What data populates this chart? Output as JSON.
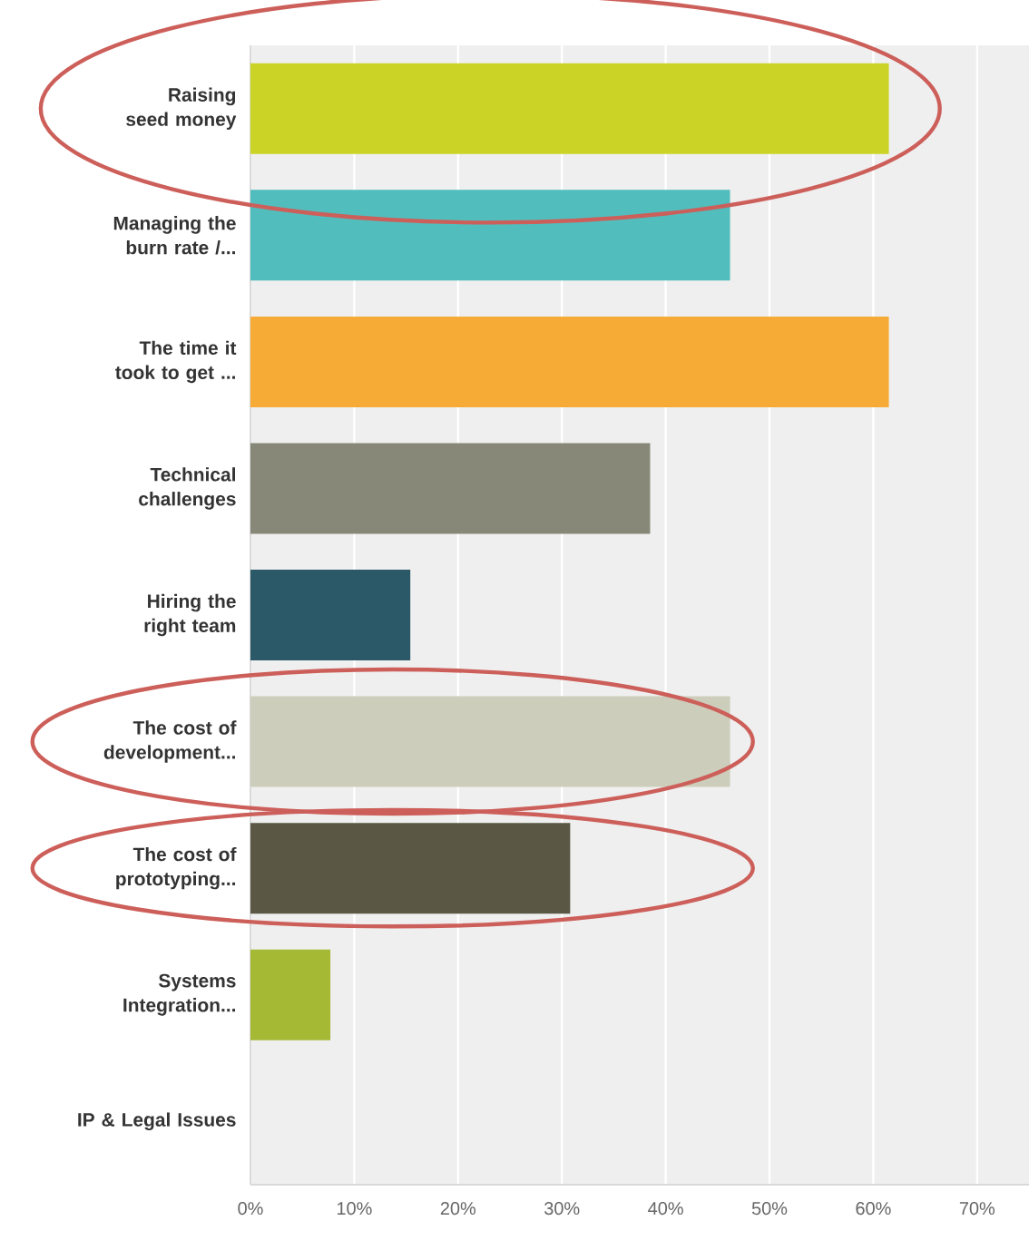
{
  "chart_data": {
    "type": "bar",
    "orientation": "horizontal",
    "categories": [
      "Raising seed money",
      "Managing the burn rate /...",
      "The time it took to get ...",
      "Technical challenges",
      "Hiring the right team",
      "The cost of development...",
      "The cost of prototyping...",
      "Systems Integration...",
      "IP & Legal Issues"
    ],
    "values": [
      61.5,
      46.2,
      61.5,
      38.5,
      15.4,
      46.2,
      30.8,
      7.7,
      0
    ],
    "colors": [
      "#cbd426",
      "#52bdbd",
      "#f5ab35",
      "#878878",
      "#2b5967",
      "#cdcdbb",
      "#5a5845",
      "#a5b935",
      "#9ab33c"
    ],
    "xlim": [
      0,
      75
    ],
    "xticks": [
      {
        "value": 0,
        "label": "0%"
      },
      {
        "value": 10,
        "label": "10%"
      },
      {
        "value": 20,
        "label": "20%"
      },
      {
        "value": 30,
        "label": "30%"
      },
      {
        "value": 40,
        "label": "40%"
      },
      {
        "value": 50,
        "label": "50%"
      },
      {
        "value": 60,
        "label": "60%"
      },
      {
        "value": 70,
        "label": "70%"
      }
    ],
    "grid": "x"
  }
}
